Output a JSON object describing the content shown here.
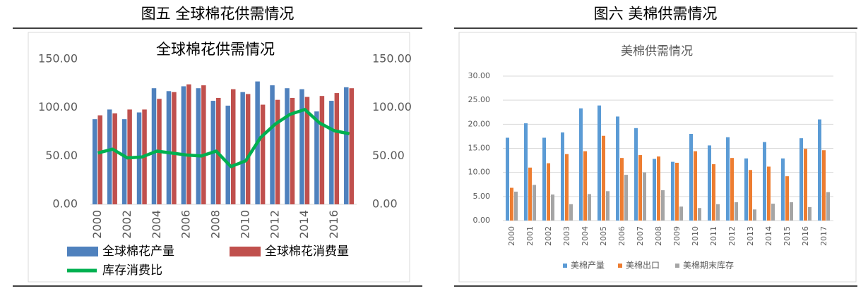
{
  "chart_data": [
    {
      "type": "bar",
      "caption": "图五  全球棉花供需情况",
      "title": "全球棉花供需情况",
      "categories": [
        "2000",
        null,
        "2002",
        null,
        "2004",
        null,
        "2006",
        null,
        "2008",
        null,
        "2010",
        null,
        "2012",
        null,
        "2014",
        null,
        "2016",
        null
      ],
      "series": [
        {
          "name": "全球棉花产量",
          "color": "#4f81bd",
          "values": [
            88,
            98,
            88,
            95,
            120,
            117,
            122,
            120,
            107,
            102,
            116,
            127,
            123,
            120,
            119,
            96,
            107,
            121
          ]
        },
        {
          "name": "全球棉花消费量",
          "color": "#c0504d",
          "values": [
            92,
            94,
            98,
            98,
            109,
            116,
            124,
            123,
            110,
            119,
            114,
            103,
            108,
            110,
            111,
            112,
            115,
            120
          ]
        },
        {
          "name": "库存消费比",
          "color": "#00b050",
          "type": "line",
          "axis": "y2",
          "values": [
            53,
            57,
            48,
            49,
            55,
            53,
            51,
            50,
            55,
            39,
            45,
            69,
            83,
            93,
            98,
            84,
            76,
            73
          ]
        }
      ],
      "ylim": [
        0,
        150
      ],
      "yticks": [
        {
          "value": 0,
          "label": "0.00"
        },
        {
          "value": 50,
          "label": "50.00"
        },
        {
          "value": 100,
          "label": "100.00"
        },
        {
          "value": 150,
          "label": "150.00"
        }
      ],
      "y2lim": [
        0,
        150
      ],
      "y2ticks": [
        {
          "value": 0,
          "label": "0.00"
        },
        {
          "value": 50,
          "label": "50.00"
        },
        {
          "value": 100,
          "label": "100.00"
        },
        {
          "value": 150,
          "label": "150.00"
        }
      ],
      "grid": false,
      "legend": "bottom-left"
    },
    {
      "type": "bar",
      "caption": "图六  美棉供需情况",
      "title": "美棉供需情况",
      "categories": [
        "2000",
        "2001",
        "2002",
        "2003",
        "2004",
        "2005",
        "2006",
        "2007",
        "2008",
        "2009",
        "2010",
        "2011",
        "2012",
        "2013",
        "2014",
        "2015",
        "2016",
        "2017"
      ],
      "series": [
        {
          "name": "美棉产量",
          "color": "#5b9bd5",
          "values": [
            17.2,
            20.2,
            17.2,
            18.3,
            23.3,
            23.9,
            21.6,
            19.2,
            12.8,
            12.2,
            18.0,
            15.6,
            17.3,
            12.9,
            16.3,
            12.9,
            17.1,
            21.0
          ]
        },
        {
          "name": "美棉出口",
          "color": "#ed7d31",
          "values": [
            6.8,
            11.0,
            11.9,
            13.8,
            14.4,
            17.6,
            13.0,
            13.6,
            13.3,
            12.0,
            14.4,
            11.7,
            13.0,
            10.5,
            11.2,
            9.2,
            14.9,
            14.6
          ]
        },
        {
          "name": "美棉期末库存",
          "color": "#a5a5a5",
          "values": [
            6.0,
            7.4,
            5.4,
            3.4,
            5.5,
            6.1,
            9.5,
            10.0,
            6.3,
            2.9,
            2.6,
            3.4,
            3.8,
            2.3,
            3.5,
            3.8,
            2.8,
            5.9
          ]
        }
      ],
      "ylim": [
        0,
        30
      ],
      "yticks": [
        {
          "value": 0,
          "label": "0.00"
        },
        {
          "value": 5,
          "label": "5.00"
        },
        {
          "value": 10,
          "label": "10.00"
        },
        {
          "value": 15,
          "label": "15.00"
        },
        {
          "value": 20,
          "label": "20.00"
        },
        {
          "value": 25,
          "label": "25.00"
        },
        {
          "value": 30,
          "label": "30.00"
        }
      ],
      "grid": true,
      "legend": "bottom"
    }
  ]
}
